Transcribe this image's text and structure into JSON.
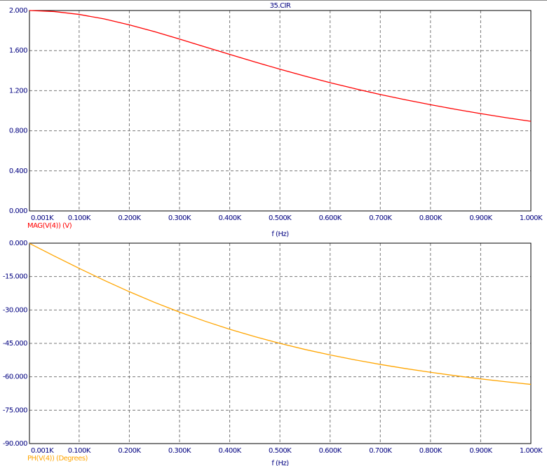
{
  "chart_data": [
    {
      "type": "line",
      "title": "35.CIR",
      "xlabel": "f (Hz)",
      "x": [
        1,
        50,
        100,
        150,
        200,
        250,
        300,
        350,
        400,
        450,
        500,
        550,
        600,
        650,
        700,
        750,
        800,
        850,
        900,
        950,
        1000
      ],
      "series": [
        {
          "name": "MAG(V(4)) (V)",
          "color": "#ff0000",
          "values": [
            2.0,
            1.99,
            1.961,
            1.916,
            1.857,
            1.789,
            1.715,
            1.638,
            1.562,
            1.487,
            1.414,
            1.345,
            1.28,
            1.219,
            1.162,
            1.109,
            1.06,
            1.014,
            0.971,
            0.931,
            0.894
          ]
        }
      ],
      "xlim": [
        1,
        1000
      ],
      "xticks": [
        {
          "value": 1,
          "label": "0.001K"
        },
        {
          "value": 100,
          "label": "0.100K"
        },
        {
          "value": 200,
          "label": "0.200K"
        },
        {
          "value": 300,
          "label": "0.300K"
        },
        {
          "value": 400,
          "label": "0.400K"
        },
        {
          "value": 500,
          "label": "0.500K"
        },
        {
          "value": 600,
          "label": "0.600K"
        },
        {
          "value": 700,
          "label": "0.700K"
        },
        {
          "value": 800,
          "label": "0.800K"
        },
        {
          "value": 900,
          "label": "0.900K"
        },
        {
          "value": 1000,
          "label": "1.000K"
        }
      ],
      "ylim": [
        0,
        2
      ],
      "yticks": [
        {
          "value": 0,
          "label": "0.000"
        },
        {
          "value": 0.4,
          "label": "0.400"
        },
        {
          "value": 0.8,
          "label": "0.800"
        },
        {
          "value": 1.2,
          "label": "1.200"
        },
        {
          "value": 1.6,
          "label": "1.600"
        },
        {
          "value": 2,
          "label": "2.000"
        }
      ],
      "grid": true
    },
    {
      "type": "line",
      "xlabel": "f (Hz)",
      "x": [
        1,
        50,
        100,
        150,
        200,
        250,
        300,
        350,
        400,
        450,
        500,
        550,
        600,
        650,
        700,
        750,
        800,
        850,
        900,
        950,
        1000
      ],
      "series": [
        {
          "name": "PH(V(4)) (Degrees)",
          "color": "#ffa500",
          "values": [
            -0.11,
            -5.71,
            -11.31,
            -16.7,
            -21.8,
            -26.57,
            -30.96,
            -34.99,
            -38.66,
            -41.99,
            -45.0,
            -47.73,
            -50.19,
            -52.43,
            -54.46,
            -56.31,
            -57.99,
            -59.53,
            -60.95,
            -62.24,
            -63.43
          ]
        }
      ],
      "xlim": [
        1,
        1000
      ],
      "xticks": [
        {
          "value": 1,
          "label": "0.001K"
        },
        {
          "value": 100,
          "label": "0.100K"
        },
        {
          "value": 200,
          "label": "0.200K"
        },
        {
          "value": 300,
          "label": "0.300K"
        },
        {
          "value": 400,
          "label": "0.400K"
        },
        {
          "value": 500,
          "label": "0.500K"
        },
        {
          "value": 600,
          "label": "0.600K"
        },
        {
          "value": 700,
          "label": "0.700K"
        },
        {
          "value": 800,
          "label": "0.800K"
        },
        {
          "value": 900,
          "label": "0.900K"
        },
        {
          "value": 1000,
          "label": "1.000K"
        }
      ],
      "ylim": [
        -90,
        0
      ],
      "yticks": [
        {
          "value": -90,
          "label": "-90.000"
        },
        {
          "value": -75,
          "label": "-75.000"
        },
        {
          "value": -60,
          "label": "-60.000"
        },
        {
          "value": -45,
          "label": "-45.000"
        },
        {
          "value": -30,
          "label": "-30.000"
        },
        {
          "value": -15,
          "label": "-15.000"
        },
        {
          "value": 0,
          "label": "0.000"
        }
      ],
      "grid": true
    }
  ]
}
